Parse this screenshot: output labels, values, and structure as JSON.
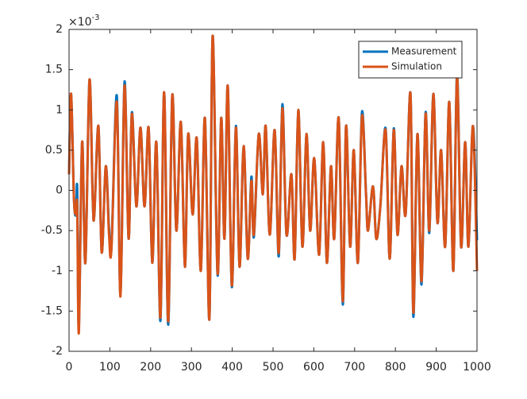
{
  "chart_data": {
    "type": "line",
    "y_multiplier": {
      "base": "×10",
      "exponent": "-3"
    },
    "x": [
      0,
      5,
      12,
      17,
      20,
      24,
      32,
      40,
      50,
      58,
      62,
      72,
      80,
      90,
      98,
      104,
      117,
      126,
      136,
      146,
      154,
      165,
      175,
      185,
      195,
      204,
      214,
      224,
      233,
      243,
      253,
      263,
      274,
      284,
      292,
      303,
      313,
      323,
      333,
      344,
      352,
      364,
      373,
      381,
      389,
      399,
      409,
      418,
      428,
      438,
      447,
      453,
      465,
      475,
      482,
      492,
      504,
      514,
      523,
      533,
      545,
      553,
      562,
      572,
      582,
      591,
      601,
      613,
      623,
      632,
      642,
      650,
      661,
      671,
      679,
      689,
      698,
      708,
      718,
      728,
      733,
      745,
      753,
      763,
      776,
      786,
      796,
      805,
      815,
      825,
      837,
      844,
      854,
      864,
      874,
      883,
      893,
      903,
      912,
      922,
      932,
      942,
      951,
      961,
      971,
      979,
      990,
      1000
    ],
    "series": [
      {
        "name": "Measurement",
        "color": "#0072bd",
        "values": [
          0.2,
          1.2,
          -0.1,
          -0.3,
          0.02,
          -1.72,
          0.6,
          -0.9,
          1.37,
          -0.1,
          -0.3,
          0.8,
          -0.77,
          0.3,
          -0.47,
          -0.7,
          1.18,
          -1.3,
          1.35,
          -0.6,
          0.97,
          -0.2,
          0.78,
          -0.2,
          0.78,
          -0.9,
          0.6,
          -1.62,
          1.22,
          -1.67,
          1.18,
          -0.5,
          0.85,
          -0.95,
          0.7,
          -0.3,
          0.65,
          -1.0,
          0.9,
          -1.6,
          1.92,
          -1.05,
          0.9,
          -0.6,
          1.3,
          -1.2,
          0.8,
          -0.95,
          0.55,
          -0.85,
          0.17,
          -0.58,
          0.7,
          -0.05,
          0.8,
          -0.55,
          0.75,
          -0.82,
          1.07,
          -0.55,
          0.2,
          -0.85,
          1.0,
          -0.7,
          0.7,
          -0.5,
          0.4,
          -0.8,
          0.6,
          -0.9,
          0.3,
          -0.6,
          0.9,
          -1.42,
          0.8,
          -0.7,
          0.5,
          -0.9,
          0.97,
          -0.05,
          -0.5,
          0.05,
          -0.6,
          -0.2,
          0.77,
          -0.85,
          0.77,
          -0.55,
          0.3,
          -0.3,
          1.2,
          -1.57,
          0.7,
          -1.17,
          0.97,
          -0.53,
          1.2,
          -0.4,
          0.5,
          -0.7,
          1.1,
          -1.0,
          1.47,
          -0.7,
          0.6,
          -0.7,
          0.8,
          -0.62
        ]
      },
      {
        "name": "Simulation",
        "color": "#d95319",
        "values": [
          0.2,
          1.2,
          -0.1,
          -0.3,
          -0.2,
          -1.77,
          0.6,
          -0.9,
          1.37,
          -0.1,
          -0.3,
          0.8,
          -0.77,
          0.3,
          -0.55,
          -0.72,
          1.1,
          -1.32,
          1.3,
          -0.6,
          0.95,
          -0.2,
          0.78,
          -0.2,
          0.78,
          -0.9,
          0.6,
          -1.58,
          1.22,
          -1.63,
          1.18,
          -0.5,
          0.85,
          -0.95,
          0.7,
          -0.3,
          0.65,
          -1.0,
          0.9,
          -1.6,
          1.92,
          -1.03,
          0.9,
          -0.6,
          1.3,
          -1.18,
          0.78,
          -0.95,
          0.55,
          -0.85,
          0.12,
          -0.55,
          0.7,
          -0.05,
          0.8,
          -0.55,
          0.75,
          -0.78,
          1.02,
          -0.55,
          0.2,
          -0.85,
          1.0,
          -0.7,
          0.7,
          -0.5,
          0.4,
          -0.8,
          0.6,
          -0.9,
          0.3,
          -0.6,
          0.9,
          -1.38,
          0.8,
          -0.7,
          0.5,
          -0.9,
          0.92,
          -0.05,
          -0.5,
          0.05,
          -0.6,
          -0.2,
          0.75,
          -0.85,
          0.75,
          -0.55,
          0.3,
          -0.3,
          1.2,
          -1.52,
          0.7,
          -1.13,
          0.95,
          -0.5,
          1.2,
          -0.4,
          0.5,
          -0.7,
          1.1,
          -1.0,
          1.42,
          -0.7,
          0.6,
          -0.7,
          0.8,
          -1.0
        ]
      }
    ],
    "xlim": [
      0,
      1000
    ],
    "xticks": [
      0,
      100,
      200,
      300,
      400,
      500,
      600,
      700,
      800,
      900,
      1000
    ],
    "ylim": [
      -2,
      2
    ],
    "yticks": [
      -2,
      -1.5,
      -1,
      -0.5,
      0,
      0.5,
      1,
      1.5,
      2
    ],
    "legend": "northeast"
  }
}
